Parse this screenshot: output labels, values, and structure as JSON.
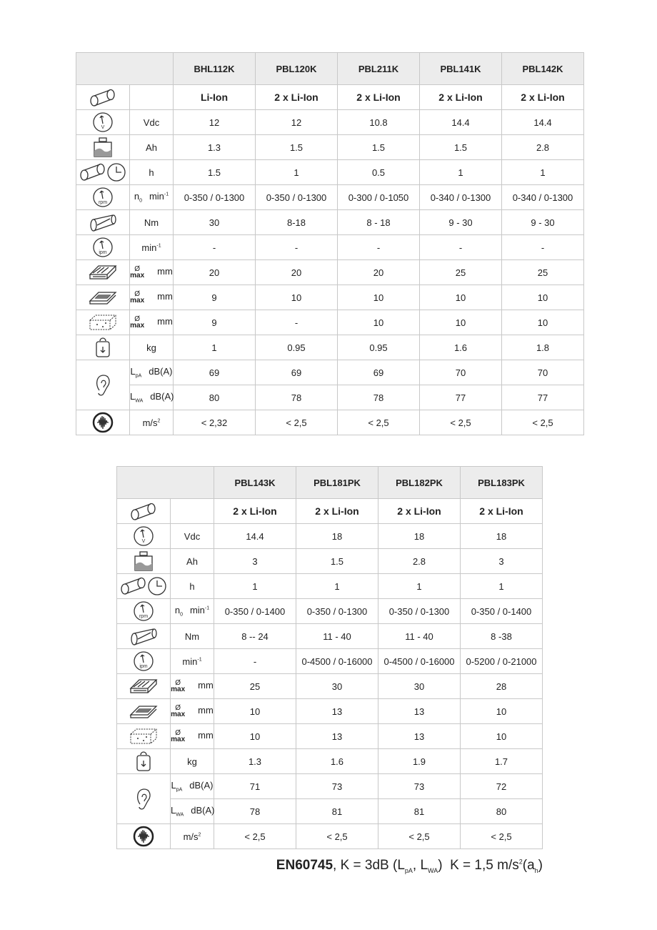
{
  "tables": [
    {
      "columns": [
        "BHL112K",
        "PBL120K",
        "PBL211K",
        "PBL141K",
        "PBL142K"
      ],
      "rows": [
        {
          "unit": [],
          "values": [
            "Li-Ion",
            "2 x Li-Ion",
            "2 x Li-Ion",
            "2 x Li-Ion",
            "2 x Li-Ion"
          ]
        },
        {
          "unit": [
            {
              "text": "Vdc"
            }
          ],
          "values": [
            "12",
            "12",
            "10.8",
            "14.4",
            "14.4"
          ]
        },
        {
          "unit": [
            {
              "text": "Ah"
            }
          ],
          "values": [
            "1.3",
            "1.5",
            "1.5",
            "1.5",
            "2.8"
          ]
        },
        {
          "unit": [
            {
              "text": "h"
            }
          ],
          "values": [
            "1.5",
            "1",
            "0.5",
            "1",
            "1"
          ]
        },
        {
          "unit": [
            {
              "text": "n"
            },
            {
              "sub": "0"
            },
            {
              "text": "min"
            },
            {
              "sup": "-1"
            }
          ],
          "values": [
            "0-350 / 0-1300",
            "0-350 / 0-1300",
            "0-300 / 0-1050",
            "0-340 / 0-1300",
            "0-340 / 0-1300"
          ]
        },
        {
          "unit": [
            {
              "text": "Nm"
            }
          ],
          "values": [
            "30",
            "8-18",
            "8 - 18",
            "9 - 30",
            "9 - 30"
          ]
        },
        {
          "unit": [
            {
              "text": "min"
            },
            {
              "sup": "-1"
            }
          ],
          "values": [
            "-",
            "-",
            "-",
            "-",
            "-"
          ]
        },
        {
          "unit": [
            {
              "dia": "Ø",
              "max": "max"
            },
            {
              "text": "mm"
            }
          ],
          "values": [
            "20",
            "20",
            "20",
            "25",
            "25"
          ]
        },
        {
          "unit": [
            {
              "dia": "Ø",
              "max": "max"
            },
            {
              "text": "mm"
            }
          ],
          "values": [
            "9",
            "10",
            "10",
            "10",
            "10"
          ]
        },
        {
          "unit": [
            {
              "dia": "Ø",
              "max": "max"
            },
            {
              "text": "mm"
            }
          ],
          "values": [
            "9",
            "-",
            "10",
            "10",
            "10"
          ]
        },
        {
          "unit": [
            {
              "text": "kg"
            }
          ],
          "values": [
            "1",
            "0.95",
            "0.95",
            "1.6",
            "1.8"
          ]
        },
        {
          "unit": [
            {
              "text": "L"
            },
            {
              "sub": "pA"
            },
            {
              "text": "dB(A)"
            }
          ],
          "values": [
            "69",
            "69",
            "69",
            "70",
            "70"
          ]
        },
        {
          "unit": [
            {
              "text": "L"
            },
            {
              "sub": "WA"
            },
            {
              "text": "dB(A)"
            }
          ],
          "values": [
            "80",
            "78",
            "78",
            "77",
            "77"
          ]
        },
        {
          "unit": [
            {
              "text": "m/s"
            },
            {
              "sup": "2"
            }
          ],
          "values": [
            "< 2,32",
            "< 2,5",
            "< 2,5",
            "< 2,5",
            "< 2,5"
          ]
        }
      ]
    },
    {
      "columns": [
        "PBL143K",
        "PBL181PK",
        "PBL182PK",
        "PBL183PK"
      ],
      "rows": [
        {
          "unit": [],
          "values": [
            "2 x Li-Ion",
            "2 x Li-Ion",
            "2 x Li-Ion",
            "2 x Li-Ion"
          ]
        },
        {
          "unit": [
            {
              "text": "Vdc"
            }
          ],
          "values": [
            "14.4",
            "18",
            "18",
            "18"
          ]
        },
        {
          "unit": [
            {
              "text": "Ah"
            }
          ],
          "values": [
            "3",
            "1.5",
            "2.8",
            "3"
          ]
        },
        {
          "unit": [
            {
              "text": "h"
            }
          ],
          "values": [
            "1",
            "1",
            "1",
            "1"
          ]
        },
        {
          "unit": [
            {
              "text": "n"
            },
            {
              "sub": "0"
            },
            {
              "text": "min"
            },
            {
              "sup": "-1"
            }
          ],
          "values": [
            "0-350 / 0-1400",
            "0-350 / 0-1300",
            "0-350 / 0-1300",
            "0-350 / 0-1400"
          ]
        },
        {
          "unit": [
            {
              "text": "Nm"
            }
          ],
          "values": [
            "8 -- 24",
            "11 - 40",
            "11 - 40",
            "8 -38"
          ]
        },
        {
          "unit": [
            {
              "text": "min"
            },
            {
              "sup": "-1"
            }
          ],
          "values": [
            "-",
            "0-4500 / 0-16000",
            "0-4500 / 0-16000",
            "0-5200 / 0-21000"
          ]
        },
        {
          "unit": [
            {
              "dia": "Ø",
              "max": "max"
            },
            {
              "text": "mm"
            }
          ],
          "values": [
            "25",
            "30",
            "30",
            "28"
          ]
        },
        {
          "unit": [
            {
              "dia": "Ø",
              "max": "max"
            },
            {
              "text": "mm"
            }
          ],
          "values": [
            "10",
            "13",
            "13",
            "10"
          ]
        },
        {
          "unit": [
            {
              "dia": "Ø",
              "max": "max"
            },
            {
              "text": "mm"
            }
          ],
          "values": [
            "10",
            "13",
            "13",
            "10"
          ]
        },
        {
          "unit": [
            {
              "text": "kg"
            }
          ],
          "values": [
            "1.3",
            "1.6",
            "1.9",
            "1.7"
          ]
        },
        {
          "unit": [
            {
              "text": "L"
            },
            {
              "sub": "pA"
            },
            {
              "text": "dB(A)"
            }
          ],
          "values": [
            "71",
            "73",
            "73",
            "72"
          ]
        },
        {
          "unit": [
            {
              "text": "L"
            },
            {
              "sub": "WA"
            },
            {
              "text": "dB(A)"
            }
          ],
          "values": [
            "78",
            "81",
            "81",
            "80"
          ]
        },
        {
          "unit": [
            {
              "text": "m/s"
            },
            {
              "sup": "2"
            }
          ],
          "values": [
            "< 2,5",
            "< 2,5",
            "< 2,5",
            "< 2,5"
          ]
        }
      ]
    }
  ],
  "footer": [
    {
      "bold": "EN60745"
    },
    {
      "text": ", K = 3dB (L"
    },
    {
      "sub": "pA"
    },
    {
      "text": ", L"
    },
    {
      "sub": "WA"
    },
    {
      "text": ")  K = 1,5 m/s"
    },
    {
      "sup": "2"
    },
    {
      "text": "(a"
    },
    {
      "sub": "h"
    },
    {
      "text": ")"
    }
  ]
}
